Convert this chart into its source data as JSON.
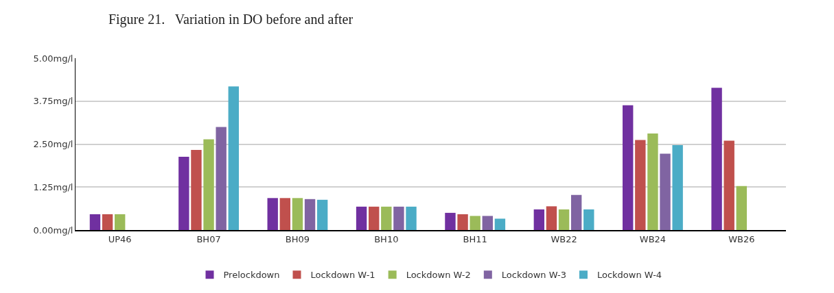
{
  "chart_data": {
    "type": "bar",
    "title": "Figure 21.   Variation in DO before and after",
    "categories": [
      "UP46",
      "BH07",
      "BH09",
      "BH10",
      "BH11",
      "WB22",
      "WB24",
      "WB26"
    ],
    "series": [
      {
        "name": "Prelockdown",
        "color": "#7030a0",
        "values": [
          0.46,
          2.13,
          0.93,
          0.68,
          0.5,
          0.6,
          3.63,
          4.14
        ]
      },
      {
        "name": "Lockdown W-1",
        "color": "#c0504d",
        "values": [
          0.46,
          2.33,
          0.93,
          0.68,
          0.46,
          0.69,
          2.62,
          2.6
        ]
      },
      {
        "name": "Lockdown W-2",
        "color": "#9bbb59",
        "values": [
          0.46,
          2.64,
          0.93,
          0.68,
          0.41,
          0.6,
          2.81,
          1.28
        ]
      },
      {
        "name": "Lockdown W-3",
        "color": "#8064a2",
        "values": [
          null,
          3.0,
          0.9,
          0.68,
          0.41,
          1.02,
          2.22,
          null
        ]
      },
      {
        "name": "Lockdown W-4",
        "color": "#4bacc6",
        "values": [
          null,
          4.18,
          0.88,
          0.68,
          0.33,
          0.6,
          2.47,
          null
        ]
      }
    ],
    "ylim": [
      0,
      5
    ],
    "yticks": [
      {
        "value": 0,
        "label": "0.00mg/l"
      },
      {
        "value": 1.25,
        "label": "1.25mg/l"
      },
      {
        "value": 2.5,
        "label": "2.50mg/l"
      },
      {
        "value": 3.75,
        "label": "3.75mg/l"
      },
      {
        "value": 5,
        "label": "5.00mg/l"
      }
    ],
    "grid": "y",
    "legend": "bottom"
  }
}
